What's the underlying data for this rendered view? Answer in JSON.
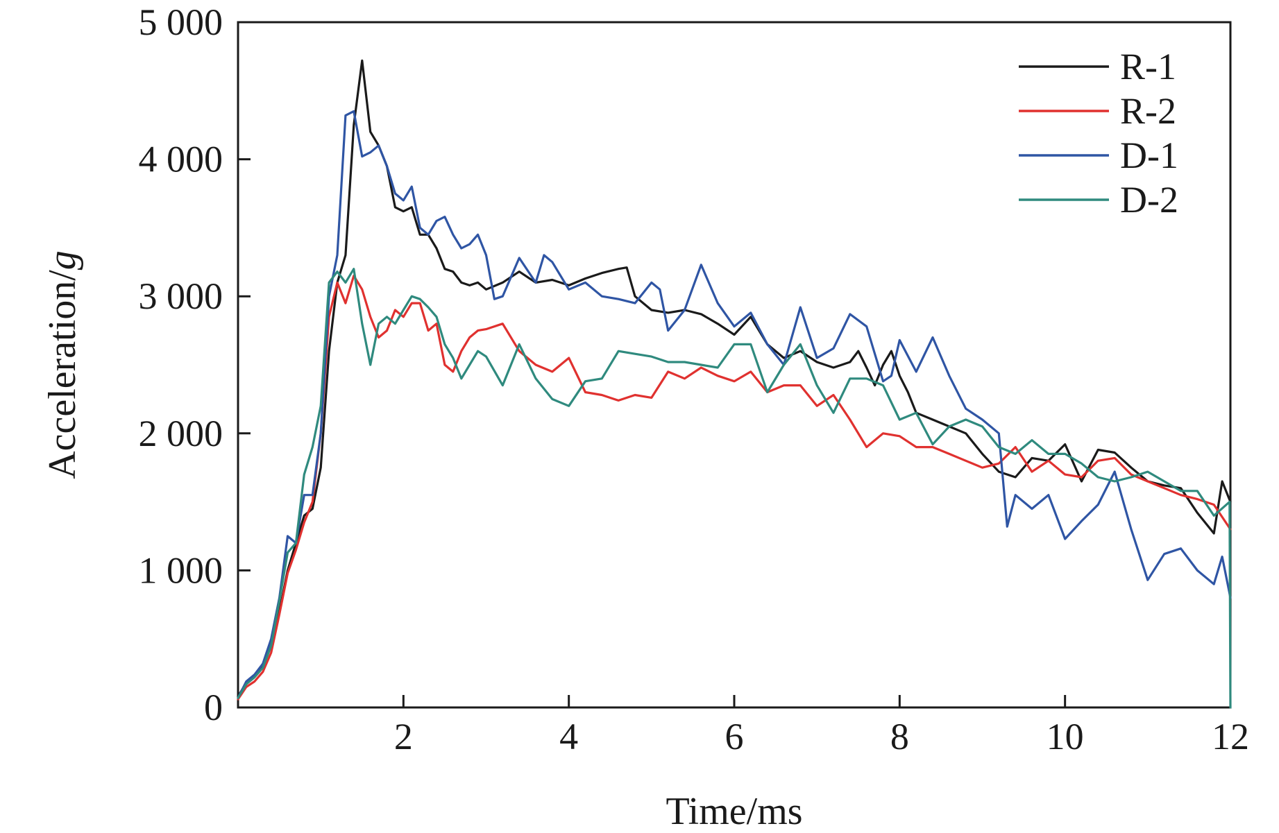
{
  "chart_data": {
    "type": "line",
    "title": "",
    "xlabel": "Time/ms",
    "ylabel_main": "Acceleration/",
    "ylabel_unit": "g",
    "xlim": [
      0,
      12
    ],
    "ylim": [
      0,
      5000
    ],
    "xticks": [
      2,
      4,
      6,
      8,
      10,
      12
    ],
    "xtick_labels": [
      "2",
      "4",
      "6",
      "8",
      "10",
      "12"
    ],
    "yticks": [
      0,
      1000,
      2000,
      3000,
      4000,
      5000
    ],
    "ytick_labels": [
      "0",
      "1 000",
      "2 000",
      "3 000",
      "4 000",
      "5 000"
    ],
    "grid": false,
    "legend_position": "top-right",
    "series": [
      {
        "name": "R-1",
        "color": "#1a1a1a",
        "x": [
          0,
          0.1,
          0.2,
          0.3,
          0.4,
          0.5,
          0.6,
          0.7,
          0.8,
          0.9,
          1.0,
          1.1,
          1.2,
          1.3,
          1.4,
          1.5,
          1.6,
          1.7,
          1.8,
          1.9,
          2.0,
          2.1,
          2.2,
          2.3,
          2.4,
          2.5,
          2.6,
          2.7,
          2.8,
          2.9,
          3.0,
          3.2,
          3.4,
          3.6,
          3.8,
          4.0,
          4.2,
          4.4,
          4.6,
          4.7,
          4.8,
          5.0,
          5.2,
          5.4,
          5.6,
          5.8,
          6.0,
          6.2,
          6.4,
          6.6,
          6.8,
          7.0,
          7.2,
          7.4,
          7.5,
          7.6,
          7.7,
          7.8,
          7.9,
          8.0,
          8.1,
          8.2,
          8.4,
          8.6,
          8.8,
          9.0,
          9.2,
          9.4,
          9.6,
          9.8,
          10.0,
          10.2,
          10.4,
          10.6,
          10.8,
          11.0,
          11.2,
          11.4,
          11.6,
          11.8,
          11.9,
          12.0
        ],
        "values": [
          80,
          180,
          230,
          300,
          450,
          700,
          1000,
          1200,
          1400,
          1450,
          1750,
          2600,
          3100,
          3300,
          4250,
          4720,
          4200,
          4100,
          3950,
          3650,
          3620,
          3650,
          3450,
          3450,
          3350,
          3200,
          3180,
          3100,
          3080,
          3100,
          3050,
          3100,
          3180,
          3100,
          3120,
          3080,
          3130,
          3170,
          3200,
          3210,
          3000,
          2900,
          2880,
          2900,
          2870,
          2800,
          2720,
          2850,
          2650,
          2550,
          2600,
          2520,
          2480,
          2520,
          2600,
          2480,
          2350,
          2500,
          2600,
          2420,
          2300,
          2150,
          2100,
          2050,
          2000,
          1850,
          1720,
          1680,
          1820,
          1800,
          1920,
          1650,
          1880,
          1860,
          1750,
          1650,
          1620,
          1600,
          1420,
          1270,
          1650,
          1500
        ]
      },
      {
        "name": "R-2",
        "color": "#e0312f",
        "x": [
          0,
          0.1,
          0.2,
          0.3,
          0.4,
          0.5,
          0.6,
          0.7,
          0.8,
          0.9,
          1.0,
          1.1,
          1.2,
          1.3,
          1.4,
          1.5,
          1.6,
          1.7,
          1.8,
          1.9,
          2.0,
          2.1,
          2.2,
          2.3,
          2.4,
          2.5,
          2.6,
          2.7,
          2.8,
          2.9,
          3.0,
          3.2,
          3.4,
          3.6,
          3.8,
          4.0,
          4.2,
          4.4,
          4.6,
          4.8,
          5.0,
          5.2,
          5.4,
          5.6,
          5.8,
          6.0,
          6.2,
          6.4,
          6.6,
          6.8,
          7.0,
          7.2,
          7.4,
          7.6,
          7.8,
          8.0,
          8.2,
          8.4,
          8.6,
          8.8,
          9.0,
          9.2,
          9.4,
          9.6,
          9.8,
          10.0,
          10.2,
          10.4,
          10.6,
          10.8,
          11.0,
          11.2,
          11.4,
          11.6,
          11.8,
          12.0
        ],
        "values": [
          60,
          150,
          190,
          260,
          400,
          680,
          980,
          1150,
          1350,
          1500,
          2000,
          2850,
          3100,
          2950,
          3150,
          3050,
          2850,
          2700,
          2750,
          2900,
          2850,
          2950,
          2950,
          2750,
          2800,
          2500,
          2450,
          2600,
          2700,
          2750,
          2760,
          2800,
          2600,
          2500,
          2450,
          2550,
          2300,
          2280,
          2240,
          2280,
          2260,
          2450,
          2400,
          2480,
          2420,
          2380,
          2450,
          2300,
          2350,
          2350,
          2200,
          2280,
          2100,
          1900,
          2000,
          1980,
          1900,
          1900,
          1850,
          1800,
          1750,
          1780,
          1900,
          1720,
          1800,
          1700,
          1680,
          1800,
          1820,
          1700,
          1650,
          1600,
          1550,
          1520,
          1480,
          1300
        ]
      },
      {
        "name": "D-1",
        "color": "#2f55a4",
        "x": [
          0,
          0.1,
          0.2,
          0.3,
          0.4,
          0.5,
          0.6,
          0.7,
          0.8,
          0.9,
          1.0,
          1.1,
          1.2,
          1.3,
          1.4,
          1.5,
          1.6,
          1.7,
          1.8,
          1.9,
          2.0,
          2.1,
          2.2,
          2.3,
          2.4,
          2.5,
          2.6,
          2.7,
          2.8,
          2.9,
          3.0,
          3.1,
          3.2,
          3.4,
          3.6,
          3.7,
          3.8,
          4.0,
          4.2,
          4.4,
          4.6,
          4.8,
          5.0,
          5.1,
          5.2,
          5.4,
          5.6,
          5.8,
          6.0,
          6.2,
          6.4,
          6.6,
          6.8,
          7.0,
          7.2,
          7.4,
          7.6,
          7.8,
          7.9,
          8.0,
          8.2,
          8.4,
          8.6,
          8.8,
          9.0,
          9.2,
          9.3,
          9.4,
          9.6,
          9.8,
          10.0,
          10.2,
          10.4,
          10.6,
          10.8,
          11.0,
          11.2,
          11.4,
          11.6,
          11.8,
          11.9,
          12.0
        ],
        "values": [
          70,
          190,
          240,
          320,
          500,
          800,
          1250,
          1200,
          1550,
          1550,
          2000,
          3000,
          3300,
          4320,
          4350,
          4020,
          4050,
          4100,
          3950,
          3750,
          3700,
          3800,
          3500,
          3450,
          3550,
          3580,
          3450,
          3350,
          3380,
          3450,
          3300,
          2980,
          3000,
          3280,
          3100,
          3300,
          3250,
          3050,
          3100,
          3000,
          2980,
          2950,
          3100,
          3050,
          2750,
          2900,
          3230,
          2950,
          2780,
          2880,
          2650,
          2500,
          2920,
          2550,
          2620,
          2870,
          2780,
          2380,
          2420,
          2680,
          2450,
          2700,
          2420,
          2180,
          2100,
          2000,
          1320,
          1550,
          1450,
          1550,
          1230,
          1360,
          1480,
          1720,
          1300,
          930,
          1120,
          1160,
          1000,
          900,
          1100,
          800
        ]
      },
      {
        "name": "D-2",
        "color": "#2f8a7e",
        "x": [
          0,
          0.1,
          0.2,
          0.3,
          0.4,
          0.5,
          0.6,
          0.7,
          0.8,
          0.9,
          1.0,
          1.1,
          1.2,
          1.3,
          1.4,
          1.5,
          1.6,
          1.7,
          1.8,
          1.9,
          2.0,
          2.1,
          2.2,
          2.3,
          2.4,
          2.5,
          2.6,
          2.7,
          2.8,
          2.9,
          3.0,
          3.2,
          3.4,
          3.6,
          3.8,
          4.0,
          4.2,
          4.4,
          4.6,
          4.8,
          5.0,
          5.2,
          5.4,
          5.6,
          5.8,
          6.0,
          6.2,
          6.4,
          6.6,
          6.8,
          7.0,
          7.2,
          7.4,
          7.6,
          7.8,
          8.0,
          8.2,
          8.4,
          8.6,
          8.8,
          9.0,
          9.2,
          9.4,
          9.6,
          9.8,
          10.0,
          10.2,
          10.4,
          10.6,
          10.8,
          11.0,
          11.2,
          11.4,
          11.6,
          11.8,
          11.99,
          12.0
        ],
        "values": [
          70,
          170,
          220,
          290,
          450,
          780,
          1130,
          1200,
          1700,
          1900,
          2200,
          3100,
          3180,
          3100,
          3200,
          2800,
          2500,
          2800,
          2850,
          2800,
          2900,
          3000,
          2980,
          2920,
          2850,
          2650,
          2550,
          2400,
          2500,
          2600,
          2560,
          2350,
          2650,
          2400,
          2250,
          2200,
          2380,
          2400,
          2600,
          2580,
          2560,
          2520,
          2520,
          2500,
          2480,
          2650,
          2650,
          2300,
          2500,
          2650,
          2350,
          2150,
          2400,
          2400,
          2350,
          2100,
          2150,
          1920,
          2050,
          2100,
          2050,
          1900,
          1850,
          1950,
          1850,
          1850,
          1780,
          1680,
          1650,
          1680,
          1720,
          1650,
          1580,
          1580,
          1400,
          1500,
          0
        ]
      }
    ]
  }
}
